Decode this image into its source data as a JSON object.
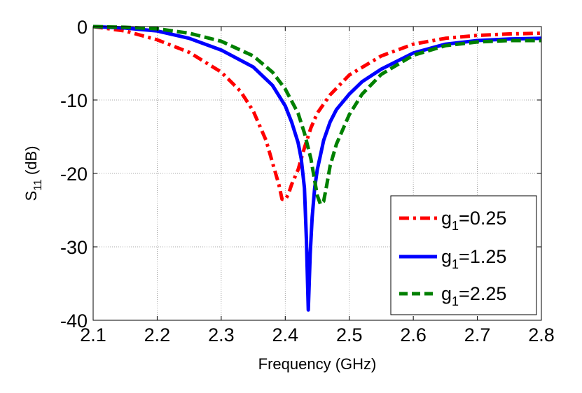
{
  "chart_data": {
    "type": "line",
    "title": "",
    "xlabel": "Frequency (GHz)",
    "ylabel": {
      "main": "S",
      "sub": "11",
      "rest": " (dB)"
    },
    "xlim": [
      2.1,
      2.8
    ],
    "ylim": [
      -40,
      0
    ],
    "grid": true,
    "legend_position": "bottom-right",
    "x_ticks": [
      {
        "value": 2.1,
        "label": "2.1"
      },
      {
        "value": 2.2,
        "label": "2.2"
      },
      {
        "value": 2.3,
        "label": "2.3"
      },
      {
        "value": 2.4,
        "label": "2.4"
      },
      {
        "value": 2.5,
        "label": "2.5"
      },
      {
        "value": 2.6,
        "label": "2.6"
      },
      {
        "value": 2.7,
        "label": "2.7"
      },
      {
        "value": 2.8,
        "label": "2.8"
      }
    ],
    "y_ticks": [
      {
        "value": 0,
        "label": "0"
      },
      {
        "value": -10,
        "label": "-10"
      },
      {
        "value": -20,
        "label": "-20"
      },
      {
        "value": -30,
        "label": "-30"
      },
      {
        "value": -40,
        "label": "-40"
      }
    ],
    "series": [
      {
        "name": "g1=0.25",
        "legend": {
          "main": "g",
          "sub": "1",
          "rest": "=0.25"
        },
        "color": "#ff0000",
        "style": "dashdot",
        "x": [
          2.1,
          2.15,
          2.2,
          2.25,
          2.3,
          2.33,
          2.35,
          2.37,
          2.38,
          2.39,
          2.395,
          2.4,
          2.405,
          2.41,
          2.42,
          2.43,
          2.44,
          2.45,
          2.47,
          2.5,
          2.55,
          2.6,
          2.65,
          2.7,
          2.75,
          2.8
        ],
        "y": [
          0,
          -0.6,
          -1.8,
          -3.5,
          -6.2,
          -8.8,
          -11.5,
          -15.5,
          -18.5,
          -21.5,
          -23.5,
          -23.6,
          -22.8,
          -21.5,
          -19.5,
          -16.5,
          -13.8,
          -11.8,
          -9.3,
          -6.6,
          -4.0,
          -2.4,
          -1.6,
          -1.2,
          -1.0,
          -0.9
        ]
      },
      {
        "name": "g1=1.25",
        "legend": {
          "main": "g",
          "sub": "1",
          "rest": "=1.25"
        },
        "color": "#0000ff",
        "style": "solid",
        "x": [
          2.1,
          2.15,
          2.2,
          2.25,
          2.3,
          2.35,
          2.38,
          2.4,
          2.41,
          2.42,
          2.425,
          2.43,
          2.433,
          2.436,
          2.439,
          2.442,
          2.446,
          2.45,
          2.455,
          2.46,
          2.47,
          2.48,
          2.5,
          2.52,
          2.55,
          2.6,
          2.65,
          2.7,
          2.75,
          2.8
        ],
        "y": [
          0,
          -0.2,
          -0.6,
          -1.6,
          -3.2,
          -5.5,
          -8.0,
          -10.8,
          -13.0,
          -15.8,
          -18.0,
          -22.0,
          -29.0,
          -38.6,
          -31.0,
          -26.0,
          -22.0,
          -19.5,
          -17.5,
          -15.5,
          -13.0,
          -11.3,
          -9.2,
          -7.5,
          -5.8,
          -3.6,
          -2.4,
          -1.9,
          -1.7,
          -1.6
        ]
      },
      {
        "name": "g1=2.25",
        "legend": {
          "main": "g",
          "sub": "1",
          "rest": "=2.25"
        },
        "color": "#008000",
        "style": "dashed",
        "x": [
          2.1,
          2.15,
          2.2,
          2.25,
          2.3,
          2.35,
          2.38,
          2.4,
          2.42,
          2.43,
          2.44,
          2.45,
          2.455,
          2.46,
          2.465,
          2.47,
          2.48,
          2.5,
          2.52,
          2.55,
          2.6,
          2.65,
          2.7,
          2.75,
          2.8
        ],
        "y": [
          0,
          -0.1,
          -0.3,
          -0.9,
          -2.0,
          -4.0,
          -6.2,
          -8.5,
          -11.8,
          -14.5,
          -18.0,
          -23.0,
          -24.2,
          -23.8,
          -21.5,
          -19.0,
          -16.0,
          -12.0,
          -9.2,
          -6.5,
          -3.9,
          -2.6,
          -2.1,
          -1.9,
          -1.9
        ]
      }
    ]
  }
}
